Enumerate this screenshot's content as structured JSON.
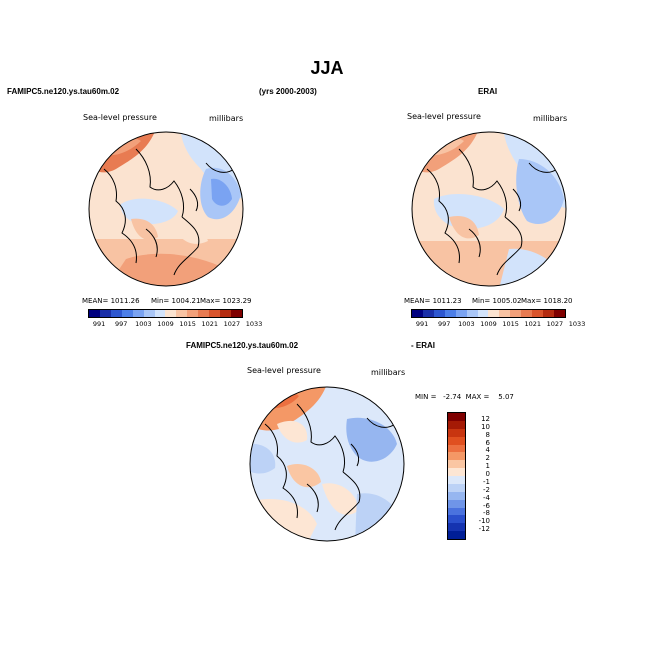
{
  "figure": {
    "title": "JJA"
  },
  "headers": {
    "model_name": "FAMIPC5.ne120.ys.tau60m.02",
    "years": "(yrs 2000-2003)",
    "obs_name": "ERAI",
    "diff_left": "FAMIPC5.ne120.ys.tau60m.02",
    "diff_right": "- ERAI"
  },
  "panels": {
    "model": {
      "variable": "Sea-level pressure",
      "units": "millibars",
      "mean": "MEAN= 1011.26",
      "min": "Min= 1004.21",
      "max": "Max= 1023.29"
    },
    "obs": {
      "variable": "Sea-level pressure",
      "units": "millibars",
      "mean": "MEAN= 1011.23",
      "min": "Min= 1005.02",
      "max": "Max= 1018.20"
    },
    "diff": {
      "variable": "Sea-level pressure",
      "units": "millibars",
      "minmax": "MIN =   -2.74  MAX =    5.07"
    }
  },
  "colorbars": {
    "abs_labels": [
      "991",
      "997",
      "1003",
      "1009",
      "1015",
      "1021",
      "1027",
      "1033"
    ],
    "abs_colors": [
      "#00007f",
      "#1a2fa8",
      "#2e57d0",
      "#4d7fe8",
      "#7aa3f2",
      "#a9c6f7",
      "#d2e3fb",
      "#fbe3d0",
      "#f8c3a3",
      "#f2a07a",
      "#e87b52",
      "#d9542c",
      "#b42b10",
      "#7f0000"
    ],
    "diff_labels": [
      "12",
      "10",
      "8",
      "6",
      "4",
      "2",
      "1",
      "0",
      "-1",
      "-2",
      "-4",
      "-6",
      "-8",
      "-10",
      "-12"
    ],
    "diff_colors": [
      "#7f0000",
      "#a51a05",
      "#c83510",
      "#e05020",
      "#ec7040",
      "#f49866",
      "#fac6a3",
      "#fde6d4",
      "#dce8fa",
      "#bcd2f6",
      "#96b6f0",
      "#6f95e8",
      "#4a72de",
      "#2a4fcc",
      "#1533b0",
      "#001e96"
    ]
  }
}
